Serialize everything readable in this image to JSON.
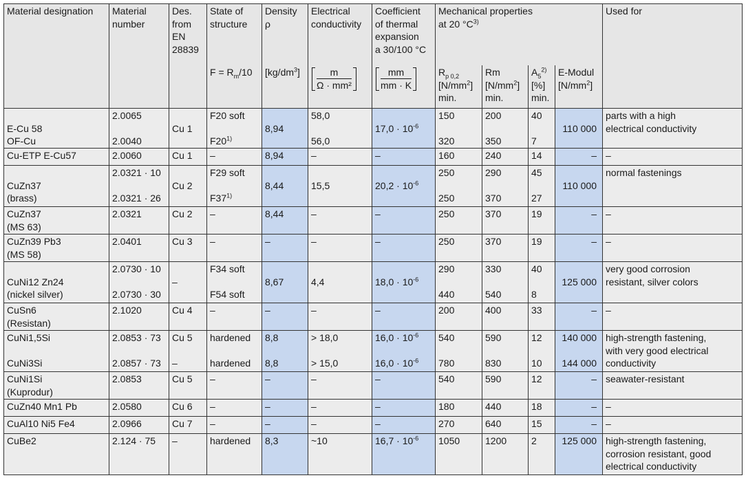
{
  "table": {
    "header": {
      "columns": [
        {
          "title": [
            "Material designation"
          ]
        },
        {
          "title": [
            "Material",
            "number"
          ]
        },
        {
          "title": [
            "Des.",
            "from",
            "EN",
            "28839"
          ]
        },
        {
          "title": [
            "State of",
            "structure"
          ],
          "unit": [
            {
              "text": "F = R",
              "sub": "m",
              "after": "/10"
            }
          ]
        },
        {
          "title": [
            "Density",
            "ρ"
          ],
          "unit": [
            {
              "text": "[kg/dm",
              "sup": "3",
              "after": "]"
            }
          ]
        },
        {
          "title": [
            "Electrical",
            "conductivity"
          ],
          "fraction": {
            "numerator": "m",
            "denominator": "Ω · mm²"
          }
        },
        {
          "title": [
            "Coefficient",
            "of thermal",
            "expansion",
            "a 30/100 °C"
          ],
          "fraction": {
            "numerator": "mm",
            "denominator": "mm · K"
          }
        },
        {
          "unit": [
            {
              "text": "R",
              "sub": "p 0,2"
            },
            {
              "text": "[N/mm",
              "sup": "2",
              "after": "]"
            },
            "min."
          ]
        },
        {
          "unit": [
            "Rm",
            {
              "text": "[N/mm",
              "sup": "2",
              "after": "]"
            },
            "min."
          ]
        },
        {
          "unit": [
            {
              "text": "A",
              "sub": "5",
              "sup": "2)"
            },
            "[%]",
            "min."
          ]
        },
        {
          "unit": [
            "E-Modul",
            {
              "text": "[N/mm",
              "sup": "2",
              "after": "]"
            }
          ]
        },
        {
          "title": [
            "Used for"
          ]
        }
      ],
      "group": {
        "title": [
          "Mechanical properties",
          {
            "text": "at 20 °C",
            "sup": "3)"
          }
        ]
      }
    },
    "rows": [
      [
        [
          "E-Cu 58",
          "OF-Cu"
        ],
        [
          "2.0065",
          "2.0040"
        ],
        [
          "Cu 1"
        ],
        [
          "F20 soft",
          {
            "text": "F20",
            "sup": "1)"
          }
        ],
        [
          "8,94"
        ],
        [
          "58,0",
          "56,0"
        ],
        [
          {
            "text": "17,0 · 10",
            "sup": "-6"
          }
        ],
        [
          "150",
          "320"
        ],
        [
          "200",
          "350"
        ],
        [
          "40",
          "7"
        ],
        [
          "110 000"
        ],
        [
          "parts with a high",
          "electrical conductivity"
        ]
      ],
      [
        [
          "Cu-ETP E-Cu57"
        ],
        [
          "2.0060"
        ],
        [
          "Cu 1"
        ],
        [
          "–"
        ],
        [
          "8,94"
        ],
        [
          "–"
        ],
        [
          "–"
        ],
        [
          "160"
        ],
        [
          "240"
        ],
        [
          "14"
        ],
        [
          "–"
        ],
        [
          "–"
        ]
      ],
      [
        [
          "CuZn37",
          "(brass)"
        ],
        [
          "2.0321 · 10",
          "2.0321 · 26"
        ],
        [
          "Cu 2"
        ],
        [
          "F29 soft",
          {
            "text": "F37",
            "sup": "1)"
          }
        ],
        [
          "8,44"
        ],
        [
          "15,5"
        ],
        [
          {
            "text": "20,2 · 10",
            "sup": "-6"
          }
        ],
        [
          "250",
          "250"
        ],
        [
          "290",
          "370"
        ],
        [
          "45",
          "27"
        ],
        [
          "110 000"
        ],
        [
          "normal fastenings"
        ]
      ],
      [
        [
          "CuZn37",
          "(MS 63)"
        ],
        [
          "2.0321"
        ],
        [
          "Cu 2"
        ],
        [
          "–"
        ],
        [
          "8,44"
        ],
        [
          "–"
        ],
        [
          "–"
        ],
        [
          "250"
        ],
        [
          "370"
        ],
        [
          "19"
        ],
        [
          "–"
        ],
        [
          "–"
        ]
      ],
      [
        [
          "CuZn39 Pb3",
          "(MS 58)"
        ],
        [
          "2.0401"
        ],
        [
          "Cu 3"
        ],
        [
          "–"
        ],
        [
          "–"
        ],
        [
          "–"
        ],
        [
          "–"
        ],
        [
          "250"
        ],
        [
          "370"
        ],
        [
          "19"
        ],
        [
          "–"
        ],
        [
          "–"
        ]
      ],
      [
        [
          "CuNi12 Zn24",
          "(nickel silver)"
        ],
        [
          "2.0730 · 10",
          "2.0730 · 30"
        ],
        [
          "–"
        ],
        [
          "F34 soft",
          "F54 soft"
        ],
        [
          "8,67"
        ],
        [
          "4,4"
        ],
        [
          {
            "text": "18,0 · 10",
            "sup": "-6"
          }
        ],
        [
          "290",
          "440"
        ],
        [
          "330",
          "540"
        ],
        [
          "40",
          "8"
        ],
        [
          "125 000"
        ],
        [
          "very good corrosion",
          "resistant, silver colors"
        ]
      ],
      [
        [
          "CuSn6",
          "(Resistan)"
        ],
        [
          "2.1020"
        ],
        [
          "Cu 4"
        ],
        [
          "–"
        ],
        [
          "–"
        ],
        [
          "–"
        ],
        [
          "–"
        ],
        [
          "200"
        ],
        [
          "400"
        ],
        [
          "33"
        ],
        [
          "–"
        ],
        [
          "–"
        ]
      ],
      [
        [
          "CuNi1,5Si",
          "CuNi3Si"
        ],
        [
          "2.0853 · 73",
          "2.0857 · 73"
        ],
        [
          "Cu 5",
          "–"
        ],
        [
          "hardened",
          "hardened"
        ],
        [
          "8,8",
          "8,8"
        ],
        [
          "> 18,0",
          "> 15,0"
        ],
        [
          {
            "text": "16,0 · 10",
            "sup": "-6"
          },
          {
            "text": "16,0 · 10",
            "sup": "-6"
          }
        ],
        [
          "540",
          "780"
        ],
        [
          "590",
          "830"
        ],
        [
          "12",
          "10"
        ],
        [
          "140 000",
          "144 000"
        ],
        [
          "high-strength fastening,",
          "with very good electrical",
          "conductivity"
        ]
      ],
      [
        [
          "CuNi1Si",
          "(Kuprodur)"
        ],
        [
          "2.0853"
        ],
        [
          "Cu 5"
        ],
        [
          "–"
        ],
        [
          "–"
        ],
        [
          "–"
        ],
        [
          "–"
        ],
        [
          "540"
        ],
        [
          "590"
        ],
        [
          "12"
        ],
        [
          "–"
        ],
        [
          "seawater-resistant"
        ]
      ],
      [
        [
          "CuZn40 Mn1 Pb"
        ],
        [
          "2.0580"
        ],
        [
          "Cu 6"
        ],
        [
          "–"
        ],
        [
          "–"
        ],
        [
          "–"
        ],
        [
          "–"
        ],
        [
          "180"
        ],
        [
          "440"
        ],
        [
          "18"
        ],
        [
          "–"
        ],
        [
          "–"
        ]
      ],
      [
        [
          "CuAl10 Ni5 Fe4"
        ],
        [
          "2.0966"
        ],
        [
          "Cu 7"
        ],
        [
          "–"
        ],
        [
          "–"
        ],
        [
          "–"
        ],
        [
          "–"
        ],
        [
          "270"
        ],
        [
          "640"
        ],
        [
          "15"
        ],
        [
          "–"
        ],
        [
          "–"
        ]
      ],
      [
        [
          "CuBe2"
        ],
        [
          "2.124 · 75"
        ],
        [
          "–"
        ],
        [
          "hardened"
        ],
        [
          "8,3"
        ],
        [
          "~10"
        ],
        [
          {
            "text": "16,7 · 10",
            "sup": "-6"
          }
        ],
        [
          "1050"
        ],
        [
          "1200"
        ],
        [
          "2"
        ],
        [
          "125 000"
        ],
        [
          "high-strength fastening,",
          "corrosion resistant, good",
          "electrical conductivity"
        ]
      ]
    ]
  }
}
